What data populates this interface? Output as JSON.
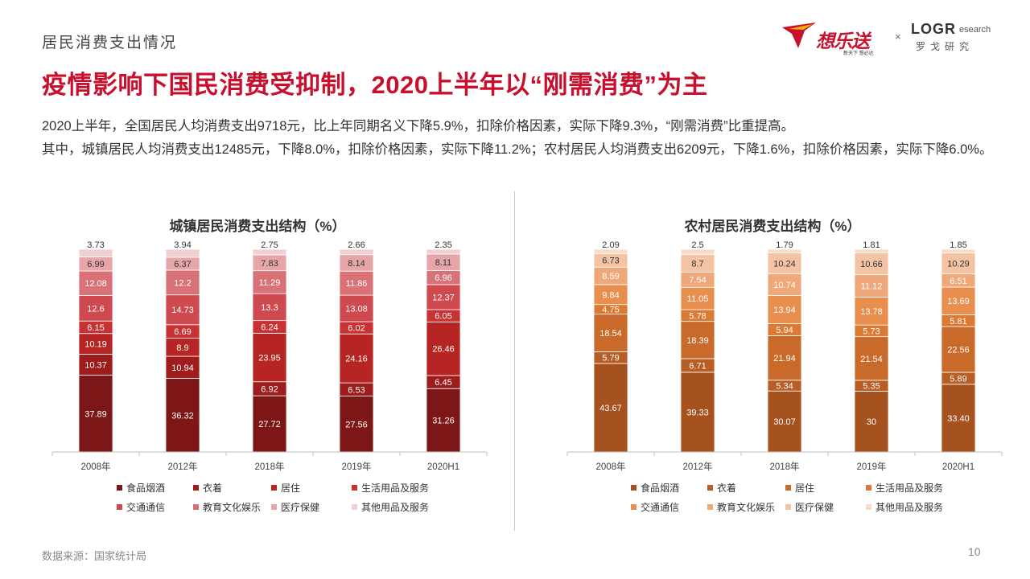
{
  "page": {
    "section": "居民消费支出情况",
    "headline": "疫情影响下国民消费受抑制，2020上半年以“刚需消费”为主",
    "desc1": "2020上半年，全国居民人均消费支出9718元，比上年同期名义下降5.9%，扣除价格因素，实际下降9.3%，“刚需消费”比重提高。",
    "desc2": "其中，城镇居民人均消费支出12485元，下降8.0%，扣除价格因素，实际下降11.2%；农村居民人均消费支出6209元，下降1.6%，扣除价格因素，实际下降6.0%。",
    "source": "数据来源：国家统计局",
    "page_number": "10",
    "logo": {
      "brand_cn": "想乐送",
      "slogan": "新天下 想必达",
      "times": "×",
      "logr": "LOGR",
      "logr_sub": "esearch",
      "logr_cn": "罗戈研究"
    }
  },
  "chart_data": [
    {
      "type": "bar",
      "stacked": true,
      "title": "城镇居民消费支出结构（%）",
      "categories": [
        "2008年",
        "2012年",
        "2018年",
        "2019年",
        "2020H1"
      ],
      "series": [
        {
          "name": "食品烟酒",
          "color": "#7d1616",
          "values": [
            "37.89",
            "36.32",
            "27.72",
            "27.56",
            "31.26"
          ]
        },
        {
          "name": "衣着",
          "color": "#9e1c1c",
          "values": [
            "10.37",
            "10.94",
            "6.92",
            "6.53",
            "6.45"
          ]
        },
        {
          "name": "居住",
          "color": "#b72424",
          "values": [
            "10.19",
            "8.9",
            "23.95",
            "24.16",
            "26.46"
          ]
        },
        {
          "name": "生活用品及服务",
          "color": "#c83232",
          "values": [
            "6.15",
            "6.69",
            "6.24",
            "6.02",
            "6.05"
          ]
        },
        {
          "name": "交通通信",
          "color": "#cf4a4f",
          "values": [
            "12.6",
            "14.73",
            "13.3",
            "13.08",
            "12.37"
          ]
        },
        {
          "name": "教育文化娱乐",
          "color": "#d87277",
          "values": [
            "12.08",
            "12.2",
            "11.29",
            "11.86",
            "6.96"
          ]
        },
        {
          "name": "医疗保健",
          "color": "#e5a5a9",
          "values": [
            "6.99",
            "6.37",
            "7.83",
            "8.14",
            "8.11"
          ]
        },
        {
          "name": "其他用品及服务",
          "color": "#f1d0d2",
          "values": [
            "3.73",
            "3.94",
            "2.75",
            "2.66",
            "2.35"
          ]
        }
      ]
    },
    {
      "type": "bar",
      "stacked": true,
      "title": "农村居民消费支出结构（%）",
      "categories": [
        "2008年",
        "2012年",
        "2018年",
        "2019年",
        "2020H1"
      ],
      "series": [
        {
          "name": "食品烟酒",
          "color": "#a5521f",
          "values": [
            "43.67",
            "39.33",
            "30.07",
            "30",
            "33.40"
          ]
        },
        {
          "name": "衣着",
          "color": "#b85d23",
          "values": [
            "5.79",
            "6.71",
            "5.34",
            "5.35",
            "5.89"
          ]
        },
        {
          "name": "居住",
          "color": "#c96a2a",
          "values": [
            "18.54",
            "18.39",
            "21.94",
            "21.54",
            "22.56"
          ]
        },
        {
          "name": "生活用品及服务",
          "color": "#db7a35",
          "values": [
            "4.75",
            "5.78",
            "5.94",
            "5.73",
            "5.81"
          ]
        },
        {
          "name": "交通通信",
          "color": "#e88f4f",
          "values": [
            "9.84",
            "11.05",
            "13.94",
            "13.78",
            "13.69"
          ]
        },
        {
          "name": "教育文化娱乐",
          "color": "#eea879",
          "values": [
            "8.59",
            "7.54",
            "10.74",
            "11.12",
            "6.51"
          ]
        },
        {
          "name": "医疗保健",
          "color": "#f3c3a3",
          "values": [
            "6.73",
            "8.7",
            "10.24",
            "10.66",
            "10.29"
          ]
        },
        {
          "name": "其他用品及服务",
          "color": "#f8dcc7",
          "values": [
            "2.09",
            "2.5",
            "1.79",
            "1.81",
            "1.85"
          ]
        }
      ]
    }
  ]
}
